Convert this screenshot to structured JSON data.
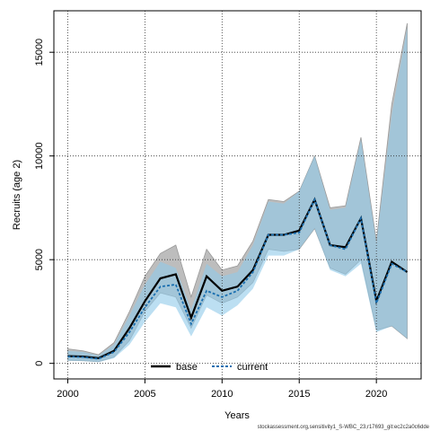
{
  "chart_data": {
    "type": "line",
    "xlabel": "Years",
    "ylabel": "Recruits (age 2)",
    "xlim": [
      1999.1,
      2022.9
    ],
    "ylim": [
      -750,
      17000
    ],
    "x_ticks": [
      2000,
      2005,
      2010,
      2015,
      2020
    ],
    "y_ticks": [
      0,
      5000,
      10000,
      15000
    ],
    "grid": true,
    "legend": {
      "placement": "bottom-center",
      "entries": [
        "base",
        "current"
      ]
    },
    "x": [
      2000,
      2001,
      2002,
      2003,
      2004,
      2005,
      2006,
      2007,
      2008,
      2009,
      2010,
      2011,
      2012,
      2013,
      2014,
      2015,
      2016,
      2017,
      2018,
      2019,
      2020,
      2021,
      2022
    ],
    "series": [
      {
        "name": "base",
        "color": "#000000",
        "band_color": "#bdbdbd",
        "values": [
          350,
          330,
          250,
          600,
          1700,
          3000,
          4100,
          4300,
          2200,
          4200,
          3500,
          3700,
          4500,
          6200,
          6200,
          6400,
          7900,
          5700,
          5600,
          7000,
          3000,
          4900,
          4400
        ],
        "lower": [
          150,
          130,
          80,
          300,
          1100,
          2500,
          3400,
          3200,
          1700,
          3300,
          2900,
          3200,
          3900,
          5500,
          5400,
          5500,
          6500,
          4600,
          4300,
          5000,
          1600,
          1800,
          1200
        ],
        "upper": [
          700,
          600,
          420,
          1000,
          2500,
          4200,
          5300,
          5700,
          3200,
          5500,
          4500,
          4700,
          5900,
          7900,
          7800,
          8300,
          10000,
          7500,
          7600,
          10900,
          5900,
          12500,
          16400
        ]
      },
      {
        "name": "current",
        "color": "#1a6fb0",
        "band_color": "#8fc9ea",
        "values": [
          330,
          300,
          220,
          550,
          1500,
          2700,
          3700,
          3800,
          1900,
          3500,
          3200,
          3500,
          4400,
          6200,
          6200,
          6300,
          7900,
          5700,
          5500,
          7000,
          2900,
          4800,
          4400
        ],
        "lower": [
          130,
          110,
          60,
          250,
          900,
          2000,
          2900,
          2700,
          1300,
          2700,
          2300,
          2800,
          3600,
          5200,
          5200,
          5500,
          6500,
          4500,
          4200,
          4800,
          1500,
          1800,
          1200
        ],
        "upper": [
          600,
          550,
          380,
          900,
          2300,
          3800,
          4900,
          4600,
          2600,
          4800,
          4200,
          4400,
          5700,
          7800,
          7700,
          8300,
          10000,
          7400,
          7500,
          10800,
          5800,
          12000,
          16200
        ]
      }
    ],
    "footnote": "stockassessment.org,sensitivity1_S-WBC_23,r17693_git:ec2c2a0c6dde"
  }
}
